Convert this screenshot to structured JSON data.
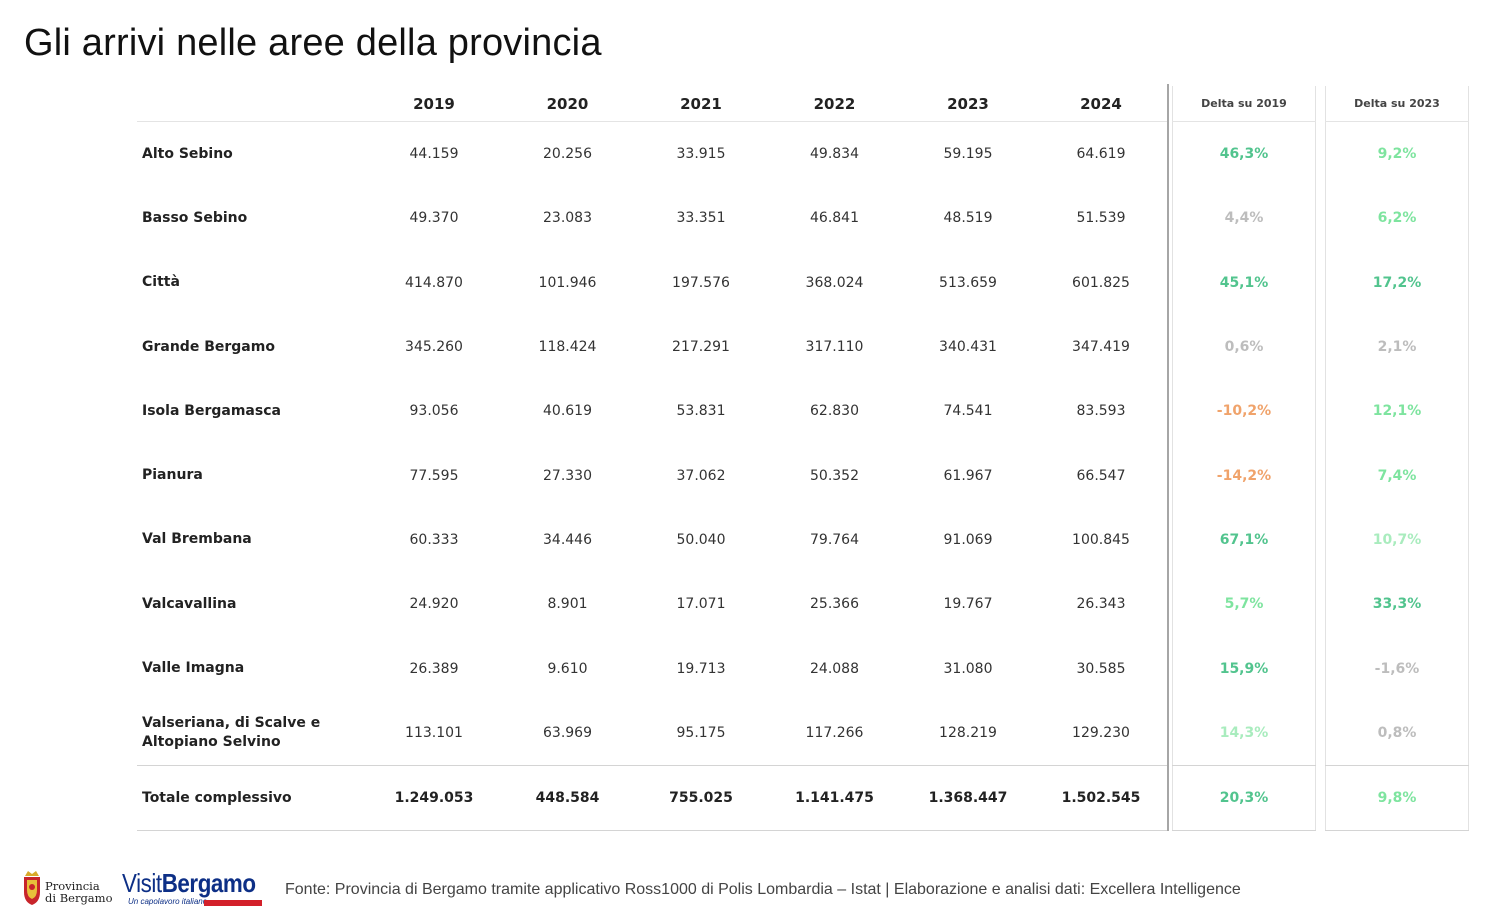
{
  "title": "Gli arrivi nelle aree della provincia",
  "table": {
    "years": [
      "2019",
      "2020",
      "2021",
      "2022",
      "2023",
      "2024"
    ],
    "delta_headers": [
      "Delta su 2019",
      "Delta su 2023"
    ],
    "rows": [
      {
        "area": "Alto Sebino",
        "values": [
          "44.159",
          "20.256",
          "33.915",
          "49.834",
          "59.195",
          "64.619"
        ],
        "d2019": "46,3%",
        "d2023": "9,2%"
      },
      {
        "area": "Basso Sebino",
        "values": [
          "49.370",
          "23.083",
          "33.351",
          "46.841",
          "48.519",
          "51.539"
        ],
        "d2019": "4,4%",
        "d2023": "6,2%"
      },
      {
        "area": "Città",
        "values": [
          "414.870",
          "101.946",
          "197.576",
          "368.024",
          "513.659",
          "601.825"
        ],
        "d2019": "45,1%",
        "d2023": "17,2%"
      },
      {
        "area": "Grande Bergamo",
        "values": [
          "345.260",
          "118.424",
          "217.291",
          "317.110",
          "340.431",
          "347.419"
        ],
        "d2019": "0,6%",
        "d2023": "2,1%"
      },
      {
        "area": "Isola Bergamasca",
        "values": [
          "93.056",
          "40.619",
          "53.831",
          "62.830",
          "74.541",
          "83.593"
        ],
        "d2019": "-10,2%",
        "d2023": "12,1%"
      },
      {
        "area": "Pianura",
        "values": [
          "77.595",
          "27.330",
          "37.062",
          "50.352",
          "61.967",
          "66.547"
        ],
        "d2019": "-14,2%",
        "d2023": "7,4%"
      },
      {
        "area": "Val Brembana",
        "values": [
          "60.333",
          "34.446",
          "50.040",
          "79.764",
          "91.069",
          "100.845"
        ],
        "d2019": "67,1%",
        "d2023": "10,7%"
      },
      {
        "area": "Valcavallina",
        "values": [
          "24.920",
          "8.901",
          "17.071",
          "25.366",
          "19.767",
          "26.343"
        ],
        "d2019": "5,7%",
        "d2023": "33,3%"
      },
      {
        "area": "Valle Imagna",
        "values": [
          "26.389",
          "9.610",
          "19.713",
          "24.088",
          "31.080",
          "30.585"
        ],
        "d2019": "15,9%",
        "d2023": "-1,6%"
      },
      {
        "area": "Valseriana, di Scalve e Altopiano Selvino",
        "values": [
          "113.101",
          "63.969",
          "95.175",
          "117.266",
          "128.219",
          "129.230"
        ],
        "d2019": "14,3%",
        "d2023": "0,8%"
      }
    ],
    "total": {
      "area": "Totale complessivo",
      "values": [
        "1.249.053",
        "448.584",
        "755.025",
        "1.141.475",
        "1.368.447",
        "1.502.545"
      ],
      "d2019": "20,3%",
      "d2023": "9,8%"
    },
    "delta_colors": {
      "d2019": [
        "#52c48e",
        "#bdbdbd",
        "#52c48e",
        "#bdbdbd",
        "#f0a36b",
        "#f0a36b",
        "#52c48e",
        "#7ee49f",
        "#52c48e",
        "#a9ecbe",
        "#52c48e"
      ],
      "d2023": [
        "#7ee49f",
        "#7ee49f",
        "#52c48e",
        "#bdbdbd",
        "#7ee49f",
        "#7ee49f",
        "#a9ecbe",
        "#52c48e",
        "#bdbdbd",
        "#bdbdbd",
        "#7ee49f"
      ]
    }
  },
  "footer": {
    "source": "Fonte: Provincia di Bergamo tramite applicativo Ross1000 di Polis Lombardia – Istat | Elaborazione e analisi dati: Excellera Intelligence"
  },
  "logos": {
    "provincia_line1": "Provincia",
    "provincia_line2": "di Bergamo",
    "visit_part1": "Visit",
    "visit_part2": "Bergamo",
    "visit_tagline": "Un capolavoro italiano"
  }
}
